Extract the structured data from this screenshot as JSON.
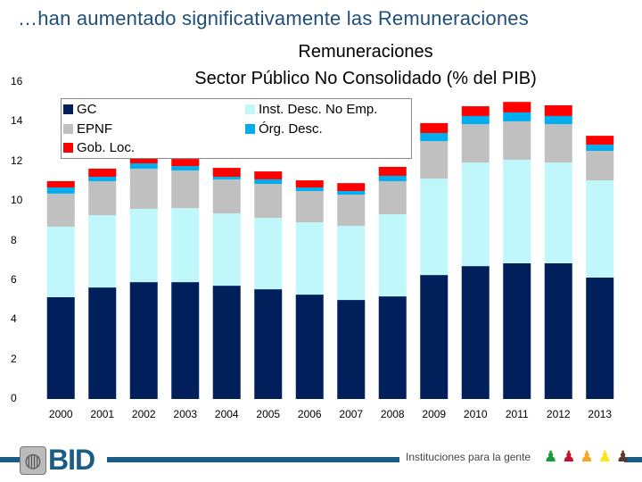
{
  "headline": "…han aumentado significativamente las Remuneraciones",
  "footer": {
    "logo_text": "BID",
    "tagline": "Instituciones para la gente",
    "people_colors": [
      "#1a9a3c",
      "#c8102e",
      "#f5a623",
      "#f8e71c",
      "#5a3b2a"
    ]
  },
  "chart_data": {
    "type": "bar",
    "stacked": true,
    "title": "Remuneraciones",
    "subtitle": "Sector Público No Consolidado (% del PIB)",
    "xlabel": "",
    "ylabel": "",
    "ylim": [
      0,
      16
    ],
    "yticks": [
      "0",
      "2",
      "4",
      "6",
      "8",
      "10",
      "12",
      "14",
      "16"
    ],
    "grid": false,
    "legend_position": "top",
    "categories": [
      "2000",
      "2001",
      "2002",
      "2003",
      "2004",
      "2005",
      "2006",
      "2007",
      "2008",
      "2009",
      "2010",
      "2011",
      "2012",
      "2013"
    ],
    "series": [
      {
        "name": "GC",
        "color": "#001f5b",
        "values": [
          5.14,
          5.63,
          5.9,
          5.9,
          5.72,
          5.54,
          5.27,
          5.0,
          5.18,
          6.26,
          6.71,
          6.85,
          6.85,
          6.13
        ]
      },
      {
        "name": "Inst. Desc. No Emp.",
        "color": "#bff7fa",
        "values": [
          3.56,
          3.65,
          3.7,
          3.74,
          3.65,
          3.61,
          3.65,
          3.74,
          4.15,
          4.87,
          5.23,
          5.23,
          5.09,
          4.91
        ]
      },
      {
        "name": "EPNF",
        "color": "#c0c0c0",
        "values": [
          1.67,
          1.72,
          2.03,
          1.9,
          1.72,
          1.71,
          1.58,
          1.58,
          1.67,
          1.89,
          1.94,
          1.94,
          1.94,
          1.49
        ]
      },
      {
        "name": "Órg. Desc.",
        "color": "#00aeef",
        "values": [
          0.31,
          0.22,
          0.27,
          0.22,
          0.13,
          0.23,
          0.18,
          0.18,
          0.27,
          0.41,
          0.41,
          0.45,
          0.41,
          0.31
        ]
      },
      {
        "name": "Gob. Loc.",
        "color": "#ff0000",
        "values": [
          0.32,
          0.41,
          0.4,
          0.36,
          0.45,
          0.4,
          0.36,
          0.4,
          0.45,
          0.5,
          0.49,
          0.53,
          0.54,
          0.45
        ]
      }
    ]
  }
}
